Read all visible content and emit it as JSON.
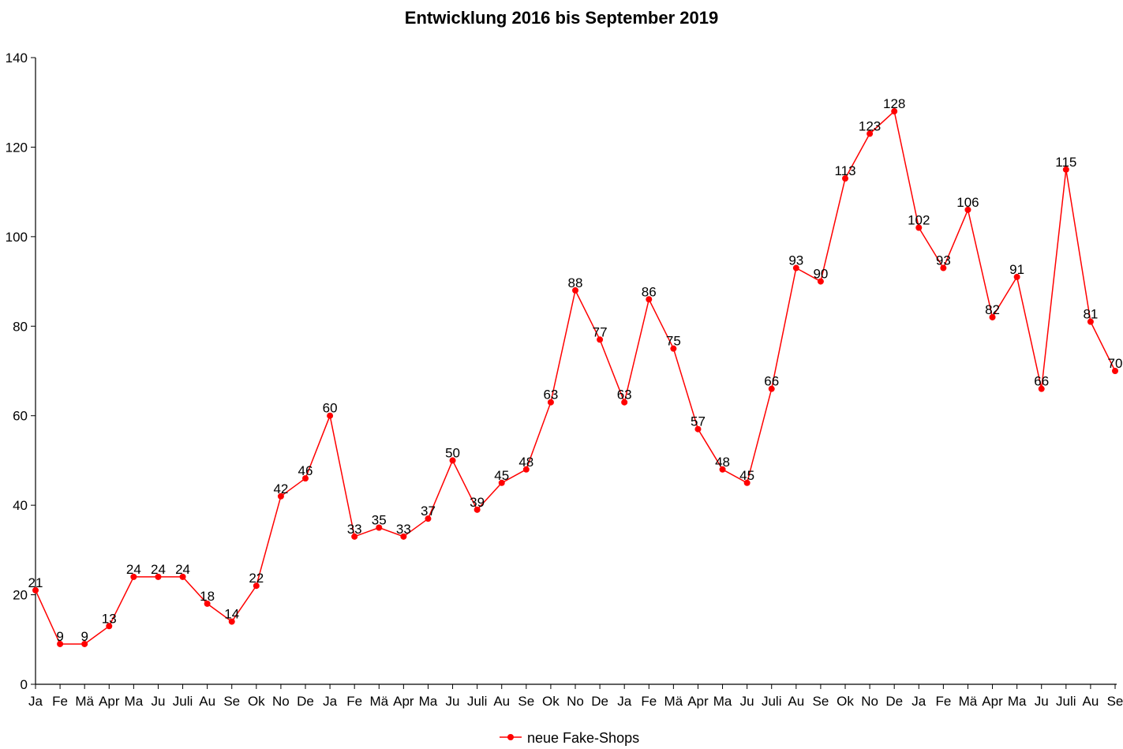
{
  "chart_data": {
    "type": "line",
    "title": "Entwicklung 2016 bis September 2019",
    "xlabel": "",
    "ylabel": "",
    "ylim": [
      0,
      140
    ],
    "yticks": [
      0,
      20,
      40,
      60,
      80,
      100,
      120,
      140
    ],
    "grid": false,
    "legend_position": "bottom-center",
    "categories": [
      "Ja",
      "Fe",
      "Mä",
      "Apr",
      "Ma",
      "Ju",
      "Juli",
      "Au",
      "Se",
      "Ok",
      "No",
      "De",
      "Ja",
      "Fe",
      "Mä",
      "Apr",
      "Ma",
      "Ju",
      "Juli",
      "Au",
      "Se",
      "Ok",
      "No",
      "De",
      "Ja",
      "Fe",
      "Mä",
      "Apr",
      "Ma",
      "Ju",
      "Juli",
      "Au",
      "Se",
      "Ok",
      "No",
      "De",
      "Ja",
      "Fe",
      "Mä",
      "Apr",
      "Ma",
      "Ju",
      "Juli",
      "Au",
      "Se"
    ],
    "series": [
      {
        "name": "neue Fake-Shops",
        "color": "#ff0000",
        "values": [
          21,
          9,
          9,
          13,
          24,
          24,
          24,
          18,
          14,
          22,
          42,
          46,
          60,
          33,
          35,
          33,
          37,
          50,
          39,
          45,
          48,
          63,
          88,
          77,
          63,
          86,
          75,
          57,
          48,
          45,
          66,
          93,
          90,
          113,
          123,
          128,
          102,
          93,
          106,
          82,
          91,
          66,
          115,
          81,
          70
        ]
      }
    ]
  }
}
